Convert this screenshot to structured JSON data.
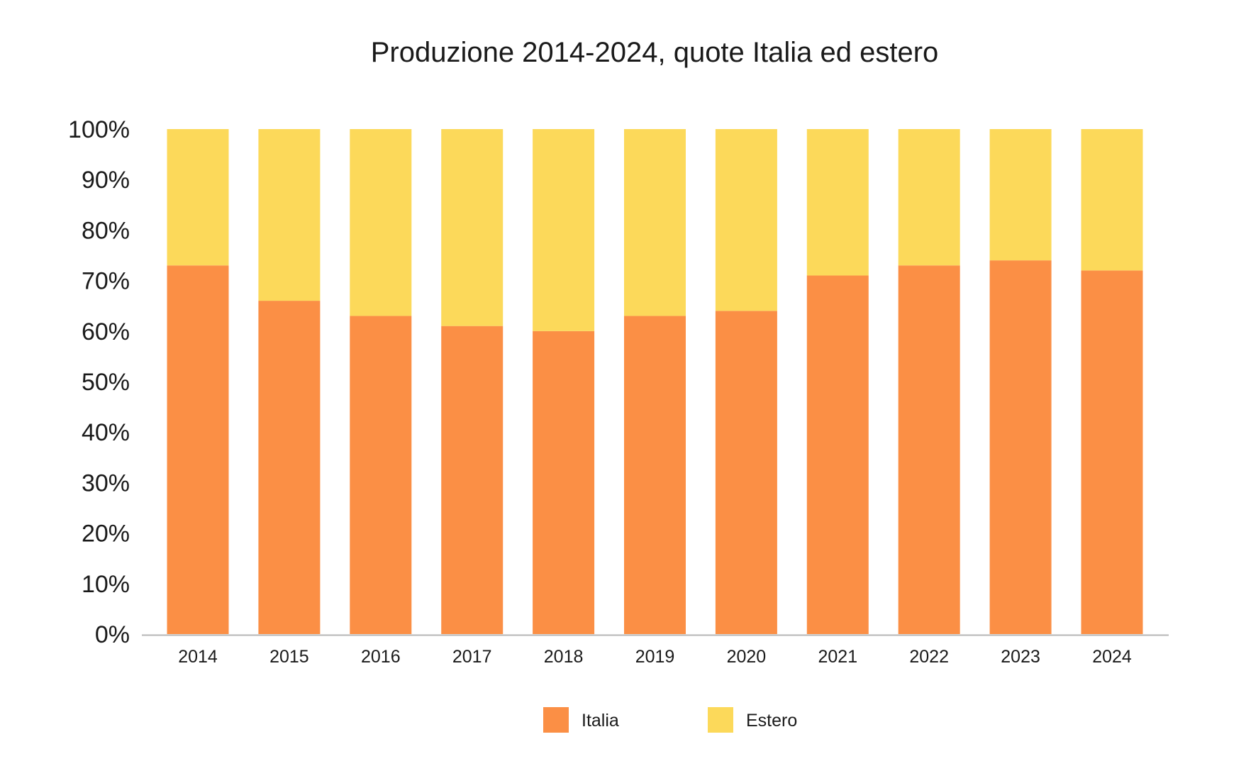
{
  "chart_data": {
    "type": "bar",
    "stacked": true,
    "title": "Produzione 2014-2024, quote Italia ed estero",
    "categories": [
      "2014",
      "2015",
      "2016",
      "2017",
      "2018",
      "2019",
      "2020",
      "2021",
      "2022",
      "2023",
      "2024"
    ],
    "series": [
      {
        "name": "Italia",
        "color": "#fb8f45",
        "values": [
          73,
          66,
          63,
          61,
          60,
          63,
          64,
          71,
          73,
          74,
          72
        ]
      },
      {
        "name": "Estero",
        "color": "#fcd95a",
        "values": [
          27,
          34,
          37,
          39,
          40,
          37,
          36,
          29,
          27,
          26,
          28
        ]
      }
    ],
    "ylim": [
      0,
      100
    ],
    "yticks": [
      "0%",
      "10%",
      "20%",
      "30%",
      "40%",
      "50%",
      "60%",
      "70%",
      "80%",
      "90%",
      "100%"
    ],
    "grid": false,
    "legend": "bottom-center",
    "axis_color": "#b5b5b5"
  }
}
